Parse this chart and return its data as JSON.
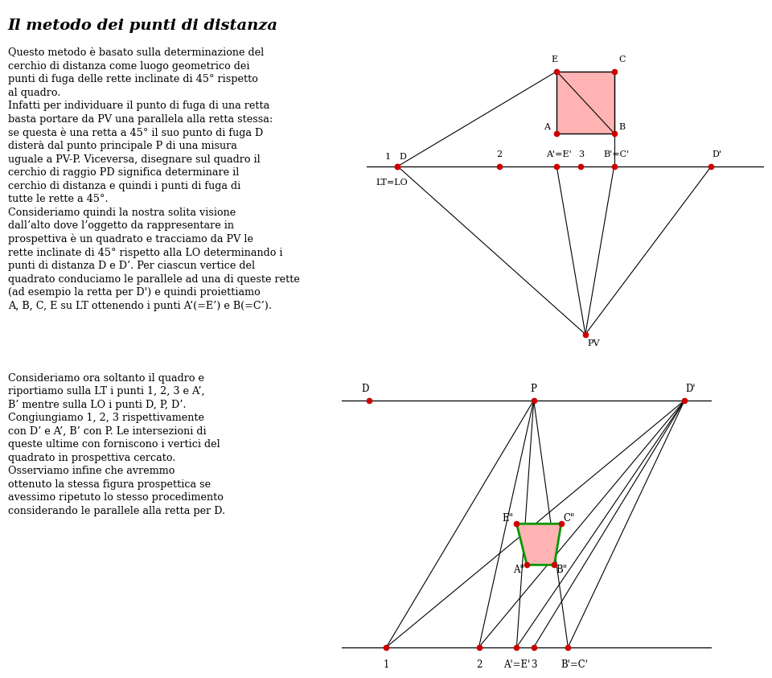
{
  "title": "Il metodo dei punti di distanza",
  "para1": "Questo metodo è basato sulla determinazione del\ncerchio di distanza come luogo geometrico dei\npunti di fuga delle rette inclinate di 45° rispetto\nal quadro.\nInfatti per individuare il punto di fuga di una retta\nbasta portare da PV una parallela alla retta stessa:\nse questa è una retta a 45° il suo punto di fuga D\ndisterà dal punto principale P di una misura\nuguale a PV-P. Viceversa, disegnare sul quadro il\ncerchio di raggio PD significa determinare il\ncerchio di distanza e quindi i punti di fuga di\ntutte le rette a 45°.\nConsideriamo quindi la nostra solita visione\ndall’alto dove l’oggetto da rappresentare in\nprospettiva è un quadrato e tracciamo da PV le\nrette inclinate di 45° rispetto alla LO determinando i\npunti di distanza D e D’. Per ciascun vertice del\nquadrato conduciamo le parallele ad una di queste rette\n(ad esempio la retta per D') e quindi proiettiamo\nA, B, C, E su LT ottenendo i punti A’(=E’) e B(=C’).",
  "para2": "Consideriamo ora soltanto il quadro e\nriportiamo sulla LT i punti 1, 2, 3 e A’,\nB’ mentre sulla LO i punti D, P, D’.\nCongiungiamo 1, 2, 3 rispettivamente\ncon D’ e A’, B’ con P. Le intersezioni di\nqueste ultime con forniscono i vertici del\nquadrato in prospettiva cercato.\nOsserviamo infine che avremmo\nottenuto la stessa figura prospettica se\navessimo ripetuto lo stesso procedimento\nconsiderando le parallele alla retta per D.",
  "dot_color": "#cc0000",
  "line_color": "#000000",
  "square_fill": "#ffb3b3",
  "square_stroke": "#000000",
  "trap_fill": "#ffb3b3",
  "trap_stroke": "#009900",
  "bg_color": "#ffffff"
}
